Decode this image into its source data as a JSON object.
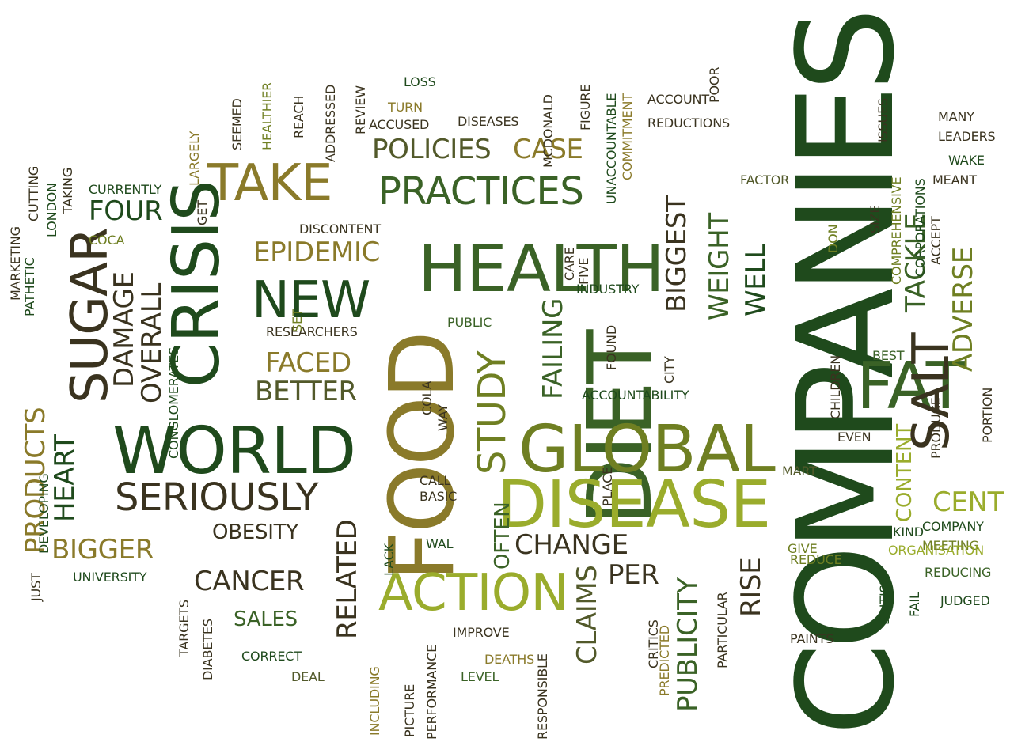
{
  "words": {
    "companies": "COMPANIES",
    "diet": "DIET",
    "food": "FOOD",
    "world": "WORLD",
    "crisis": "CRISIS",
    "sugar": "SUGAR",
    "health": "HEALTH",
    "take": "TAKE",
    "practices": "PRACTICES",
    "global": "GLOBAL",
    "disease": "DISEASE",
    "fat": "FAT",
    "salt": "SALT",
    "action": "ACTION",
    "seriously": "SERIOUSLY",
    "new": "NEW",
    "study": "STUDY",
    "weight": "WEIGHT",
    "tackle": "TACKLE",
    "adverse": "ADVERSE",
    "biggest": "BIGGEST",
    "policies": "POLICIES",
    "case": "CASE",
    "epidemic": "EPIDEMIC",
    "damage": "DAMAGE",
    "overall": "OVERALL",
    "products": "PRODUCTS",
    "heart": "HEART",
    "four": "FOUR",
    "better": "BETTER",
    "faced": "FACED",
    "bigger": "BIGGER",
    "obesity": "OBESITY",
    "cancer": "CANCER",
    "sales": "SALES",
    "related": "RELATED",
    "failing": "FAILING",
    "often": "OFTEN",
    "change": "CHANGE",
    "claims": "CLAIMS",
    "publicity": "PUBLICITY",
    "per": "PER",
    "rise": "RISE",
    "content": "CONTENT",
    "cent": "CENT",
    "well": "WELL",
    "paints": "PAINTS",
    "give": "GIVE",
    "reduce": "REDUCE",
    "critics": "CRITICS",
    "predicted": "PREDICTED",
    "deaths": "DEATHS",
    "improve": "IMPROVE",
    "level": "LEVEL",
    "picture": "PICTURE",
    "performance": "PERFORMANCE",
    "including": "INCLUDING",
    "responsible": "RESPONSIBLE",
    "correct": "CORRECT",
    "deal": "DEAL",
    "diabetes": "DIABETES",
    "targets": "TARGETS",
    "university": "UNIVERSITY",
    "just": "JUST",
    "lack": "LACK",
    "wal": "WAL",
    "call": "CALL",
    "basic": "BASIC",
    "way": "WAY",
    "developing": "DEVELOPING",
    "pathetic": "PATHETIC",
    "marketing": "MARKETING",
    "cutting": "CUTTING",
    "london": "LONDON",
    "taking": "TAKING",
    "currently": "CURRENTLY",
    "coca": "COCA",
    "conglomerates": "CONGLOMERATES",
    "researchers": "RESEARCHERS",
    "set": "SET",
    "public": "PUBLIC",
    "discontent": "DISCONTENT",
    "get": "GET",
    "largely": "LARGELY",
    "seemed": "SEEMED",
    "healthier": "HEALTHIER",
    "reach": "REACH",
    "addressed": "ADDRESSED",
    "review": "REVIEW",
    "accused": "ACCUSED",
    "turn": "TURN",
    "loss": "LOSS",
    "diseases": "DISEASES",
    "mcdonald": "MCDONALD",
    "figure": "FIGURE",
    "unaccountable": "UNACCOUNTABLE",
    "commitment": "COMMITMENT",
    "account": "ACCOUNT",
    "reductions": "REDUCTIONS",
    "poor": "POOR",
    "issues": "ISSUES",
    "many": "MANY",
    "leaders": "LEADERS",
    "wake": "WAKE",
    "meant": "MEANT",
    "factor": "FACTOR",
    "size": "SIZE",
    "comprehensive": "COMPREHENSIVE",
    "corporations": "CORPORATIONS",
    "accept": "ACCEPT",
    "don": "DON",
    "care": "CARE",
    "five": "FIVE",
    "industry": "INDUSTRY",
    "found": "FOUND",
    "city": "CITY",
    "best": "BEST",
    "children": "CHILDREN",
    "accountability": "ACCOUNTABILITY",
    "cola": "COLA",
    "place": "PLACE",
    "mart": "MART",
    "even": "EVEN",
    "produce": "PRODUCE",
    "portion": "PORTION",
    "kind": "KIND",
    "meeting": "MEETING",
    "company": "COMPANY",
    "organisation": "ORGANISATION",
    "reducing": "REDUCING",
    "british": "BRITISH",
    "fail": "FAIL",
    "judged": "JUDGED",
    "particular": "PARTICULAR"
  },
  "colors": {
    "dark_green": "#1f4a1c",
    "forest_green": "#3a6226",
    "olive": "#6f7f22",
    "gold": "#8a7a2a",
    "yellow_green": "#9aac2c",
    "dark_brown": "#3a331f",
    "background": "#ffffff"
  }
}
